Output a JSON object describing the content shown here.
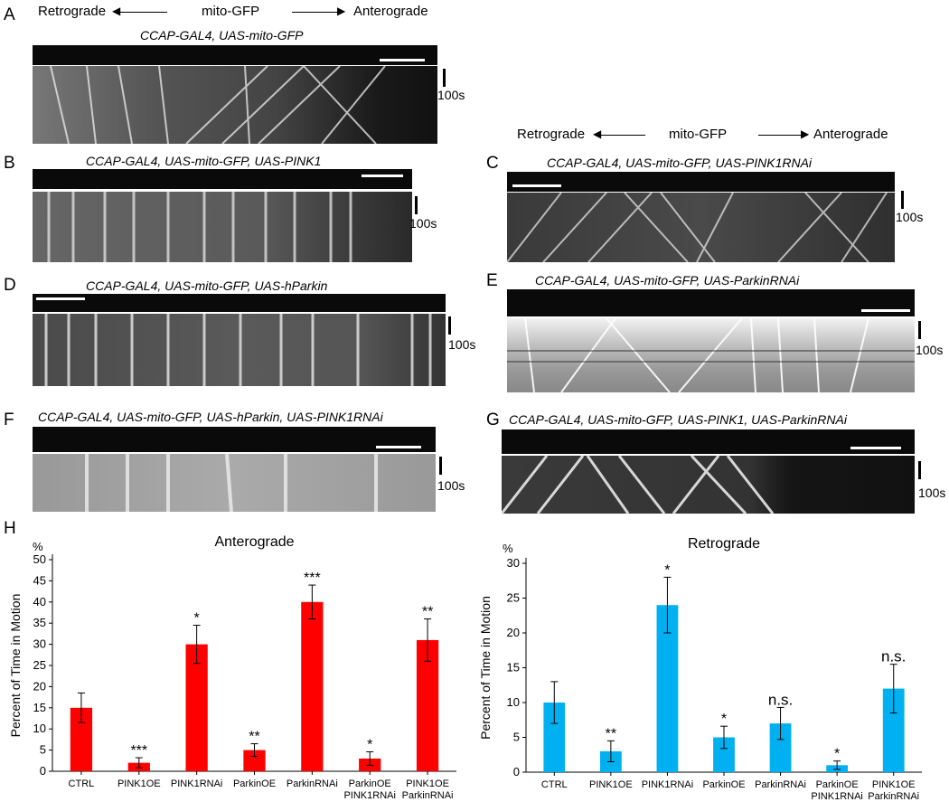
{
  "direction": {
    "retro": "Retrograde",
    "mito": "mito-GFP",
    "antero": "Anterograde"
  },
  "time_label": "100s",
  "panels": [
    {
      "letter": "A",
      "genotype": "CCAP-GAL4, UAS-mito-GFP"
    },
    {
      "letter": "B",
      "genotype": "CCAP-GAL4, UAS-mito-GFP, UAS-PINK1"
    },
    {
      "letter": "C",
      "genotype": "CCAP-GAL4, UAS-mito-GFP, UAS-PINK1RNAi"
    },
    {
      "letter": "D",
      "genotype": "CCAP-GAL4, UAS-mito-GFP, UAS-hParkin"
    },
    {
      "letter": "E",
      "genotype": "CCAP-GAL4, UAS-mito-GFP, UAS-ParkinRNAi"
    },
    {
      "letter": "F",
      "genotype": "CCAP-GAL4, UAS-mito-GFP, UAS-hParkin, UAS-PINK1RNAi"
    },
    {
      "letter": "G",
      "genotype": "CCAP-GAL4, UAS-mito-GFP, UAS-PINK1, UAS-ParkinRNAi"
    },
    {
      "letter": "H"
    }
  ],
  "chart_data": [
    {
      "type": "bar",
      "title": "Anterograde",
      "ylabel": "Percent of Time in Motion",
      "yunit": "%",
      "ylim": [
        0,
        50
      ],
      "yticks": [
        0,
        5,
        10,
        15,
        20,
        25,
        30,
        35,
        40,
        45,
        50
      ],
      "categories": [
        [
          "CTRL"
        ],
        [
          "PINK1OE"
        ],
        [
          "PINK1RNAi"
        ],
        [
          "ParkinOE"
        ],
        [
          "ParkinRNAi"
        ],
        [
          "ParkinOE",
          "PINK1RNAi"
        ],
        [
          "PINK1OE",
          "ParkinRNAi"
        ]
      ],
      "values": [
        15,
        2,
        30,
        5,
        40,
        3,
        31
      ],
      "errors": [
        3.5,
        1.2,
        4.5,
        1.5,
        4,
        1.6,
        5
      ],
      "significance": [
        "",
        "***",
        "*",
        "**",
        "***",
        "*",
        "**"
      ],
      "color": "#ff0000"
    },
    {
      "type": "bar",
      "title": "Retrograde",
      "ylabel": "Percent of Time in Motion",
      "yunit": "%",
      "ylim": [
        0,
        30
      ],
      "yticks": [
        0,
        5,
        10,
        15,
        20,
        25,
        30
      ],
      "categories": [
        [
          "CTRL"
        ],
        [
          "PINK1OE"
        ],
        [
          "PINK1RNAi"
        ],
        [
          "ParkinOE"
        ],
        [
          "ParkinRNAi"
        ],
        [
          "ParkinOE",
          "PINK1RNAi"
        ],
        [
          "PINK1OE",
          "ParkinRNAi"
        ]
      ],
      "values": [
        10,
        3,
        24,
        5,
        7,
        1,
        12
      ],
      "errors": [
        3,
        1.5,
        4,
        1.6,
        2.3,
        0.6,
        3.5
      ],
      "significance": [
        "",
        "**",
        "*",
        "*",
        "n.s.",
        "*",
        "n.s."
      ],
      "color": "#00b0f0"
    }
  ]
}
